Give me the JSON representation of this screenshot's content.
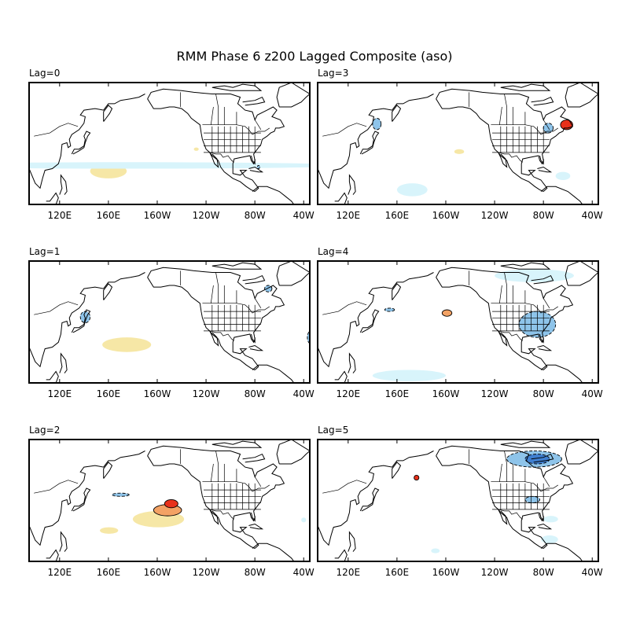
{
  "title": "RMM Phase 6 z200 Lagged Composite (aso)",
  "x_tick_labels": [
    "120E",
    "160E",
    "160W",
    "120W",
    "80W",
    "40W"
  ],
  "colors": {
    "pos_weak": "#f6e7a6",
    "pos_mod": "#f3a264",
    "pos_strong": "#e8311b",
    "neg_weak": "#d8f4fb",
    "neg_mod": "#8ec4ea",
    "neg_strong": "#3f7fd0"
  },
  "panels": [
    {
      "id": "lag0",
      "label": "Lag=0",
      "anomalies": [
        {
          "sign": "pos",
          "level": 1,
          "lon": [
            145,
            175
          ],
          "lat": [
            16,
            25
          ]
        },
        {
          "sign": "neg",
          "level": 1,
          "lon": [
            -5,
            0
          ],
          "lat": [
            22,
            26
          ]
        },
        {
          "sign": "neg",
          "level": 1,
          "lon": [
            8,
            14
          ],
          "lat": [
            17,
            20
          ]
        },
        {
          "sign": "neg",
          "level": 2,
          "lon": [
            -78,
            -76
          ],
          "lat": [
            22,
            24
          ]
        },
        {
          "sign": "pos",
          "level": 1,
          "lon": [
            -130,
            -126
          ],
          "lat": [
            33,
            35
          ]
        }
      ]
    },
    {
      "id": "lag3",
      "label": "Lag=3",
      "anomalies": [
        {
          "sign": "neg",
          "level": 2,
          "lon": [
            140,
            147
          ],
          "lat": [
            46,
            53
          ]
        },
        {
          "sign": "neg",
          "level": 2,
          "lon": [
            -80,
            -72
          ],
          "lat": [
            44,
            50
          ]
        },
        {
          "sign": "pos",
          "level": 3,
          "lon": [
            -66,
            -56
          ],
          "lat": [
            46,
            52
          ]
        },
        {
          "sign": "pos",
          "level": 1,
          "lon": [
            -153,
            -145
          ],
          "lat": [
            31,
            34
          ]
        },
        {
          "sign": "neg",
          "level": 1,
          "lon": [
            160,
            185
          ],
          "lat": [
            5,
            13
          ]
        },
        {
          "sign": "neg",
          "level": 1,
          "lon": [
            -70,
            -58
          ],
          "lat": [
            15,
            20
          ]
        }
      ]
    },
    {
      "id": "lag1",
      "label": "Lag=1",
      "anomalies": [
        {
          "sign": "neg",
          "level": 2,
          "lon": [
            137,
            145
          ],
          "lat": [
            37,
            44
          ]
        },
        {
          "sign": "neg",
          "level": 2,
          "lon": [
            -72,
            -66
          ],
          "lat": [
            56,
            60
          ]
        },
        {
          "sign": "pos",
          "level": 1,
          "lon": [
            155,
            195
          ],
          "lat": [
            19,
            28
          ]
        },
        {
          "sign": "neg",
          "level": 2,
          "lon": [
            -37,
            -31
          ],
          "lat": [
            24,
            32
          ]
        }
      ]
    },
    {
      "id": "lag4",
      "label": "Lag=4",
      "anomalies": [
        {
          "sign": "neg",
          "level": 1,
          "lon": [
            -120,
            -55
          ],
          "lat": [
            62,
            70
          ]
        },
        {
          "sign": "neg",
          "level": 2,
          "lon": [
            -100,
            -70
          ],
          "lat": [
            28,
            44
          ]
        },
        {
          "sign": "pos",
          "level": 2,
          "lon": [
            -163,
            -155
          ],
          "lat": [
            41,
            45
          ]
        },
        {
          "sign": "neg",
          "level": 1,
          "lon": [
            140,
            200
          ],
          "lat": [
            1,
            8
          ]
        },
        {
          "sign": "neg",
          "level": 2,
          "lon": [
            150,
            158
          ],
          "lat": [
            44,
            46
          ]
        }
      ]
    },
    {
      "id": "lag2",
      "label": "Lag=2",
      "anomalies": [
        {
          "sign": "pos",
          "level": 1,
          "lon": [
            180,
            222
          ],
          "lat": [
            21,
            31
          ]
        },
        {
          "sign": "pos",
          "level": 2,
          "lon": [
            197,
            220
          ],
          "lat": [
            28,
            35
          ]
        },
        {
          "sign": "pos",
          "level": 3,
          "lon": [
            206,
            217
          ],
          "lat": [
            33,
            38
          ]
        },
        {
          "sign": "pos",
          "level": 1,
          "lon": [
            153,
            168
          ],
          "lat": [
            17,
            21
          ]
        },
        {
          "sign": "neg",
          "level": 2,
          "lon": [
            163,
            177
          ],
          "lat": [
            40,
            42
          ]
        },
        {
          "sign": "neg",
          "level": 1,
          "lon": [
            -42,
            -38
          ],
          "lat": [
            24,
            27
          ]
        }
      ]
    },
    {
      "id": "lag5",
      "label": "Lag=5",
      "anomalies": [
        {
          "sign": "neg",
          "level": 2,
          "lon": [
            -110,
            -65
          ],
          "lat": [
            58,
            68
          ]
        },
        {
          "sign": "neg",
          "level": 3,
          "lon": [
            -95,
            -75
          ],
          "lat": [
            60,
            66
          ]
        },
        {
          "sign": "neg",
          "level": 2,
          "lon": [
            -95,
            -83
          ],
          "lat": [
            36,
            40
          ]
        },
        {
          "sign": "pos",
          "level": 3,
          "lon": [
            174,
            178
          ],
          "lat": [
            50,
            53
          ]
        },
        {
          "sign": "neg",
          "level": 1,
          "lon": [
            -80,
            -68
          ],
          "lat": [
            24,
            28
          ]
        },
        {
          "sign": "neg",
          "level": 1,
          "lon": [
            -82,
            -68
          ],
          "lat": [
            11,
            16
          ]
        },
        {
          "sign": "neg",
          "level": 1,
          "lon": [
            188,
            195
          ],
          "lat": [
            5,
            8
          ]
        }
      ]
    }
  ]
}
